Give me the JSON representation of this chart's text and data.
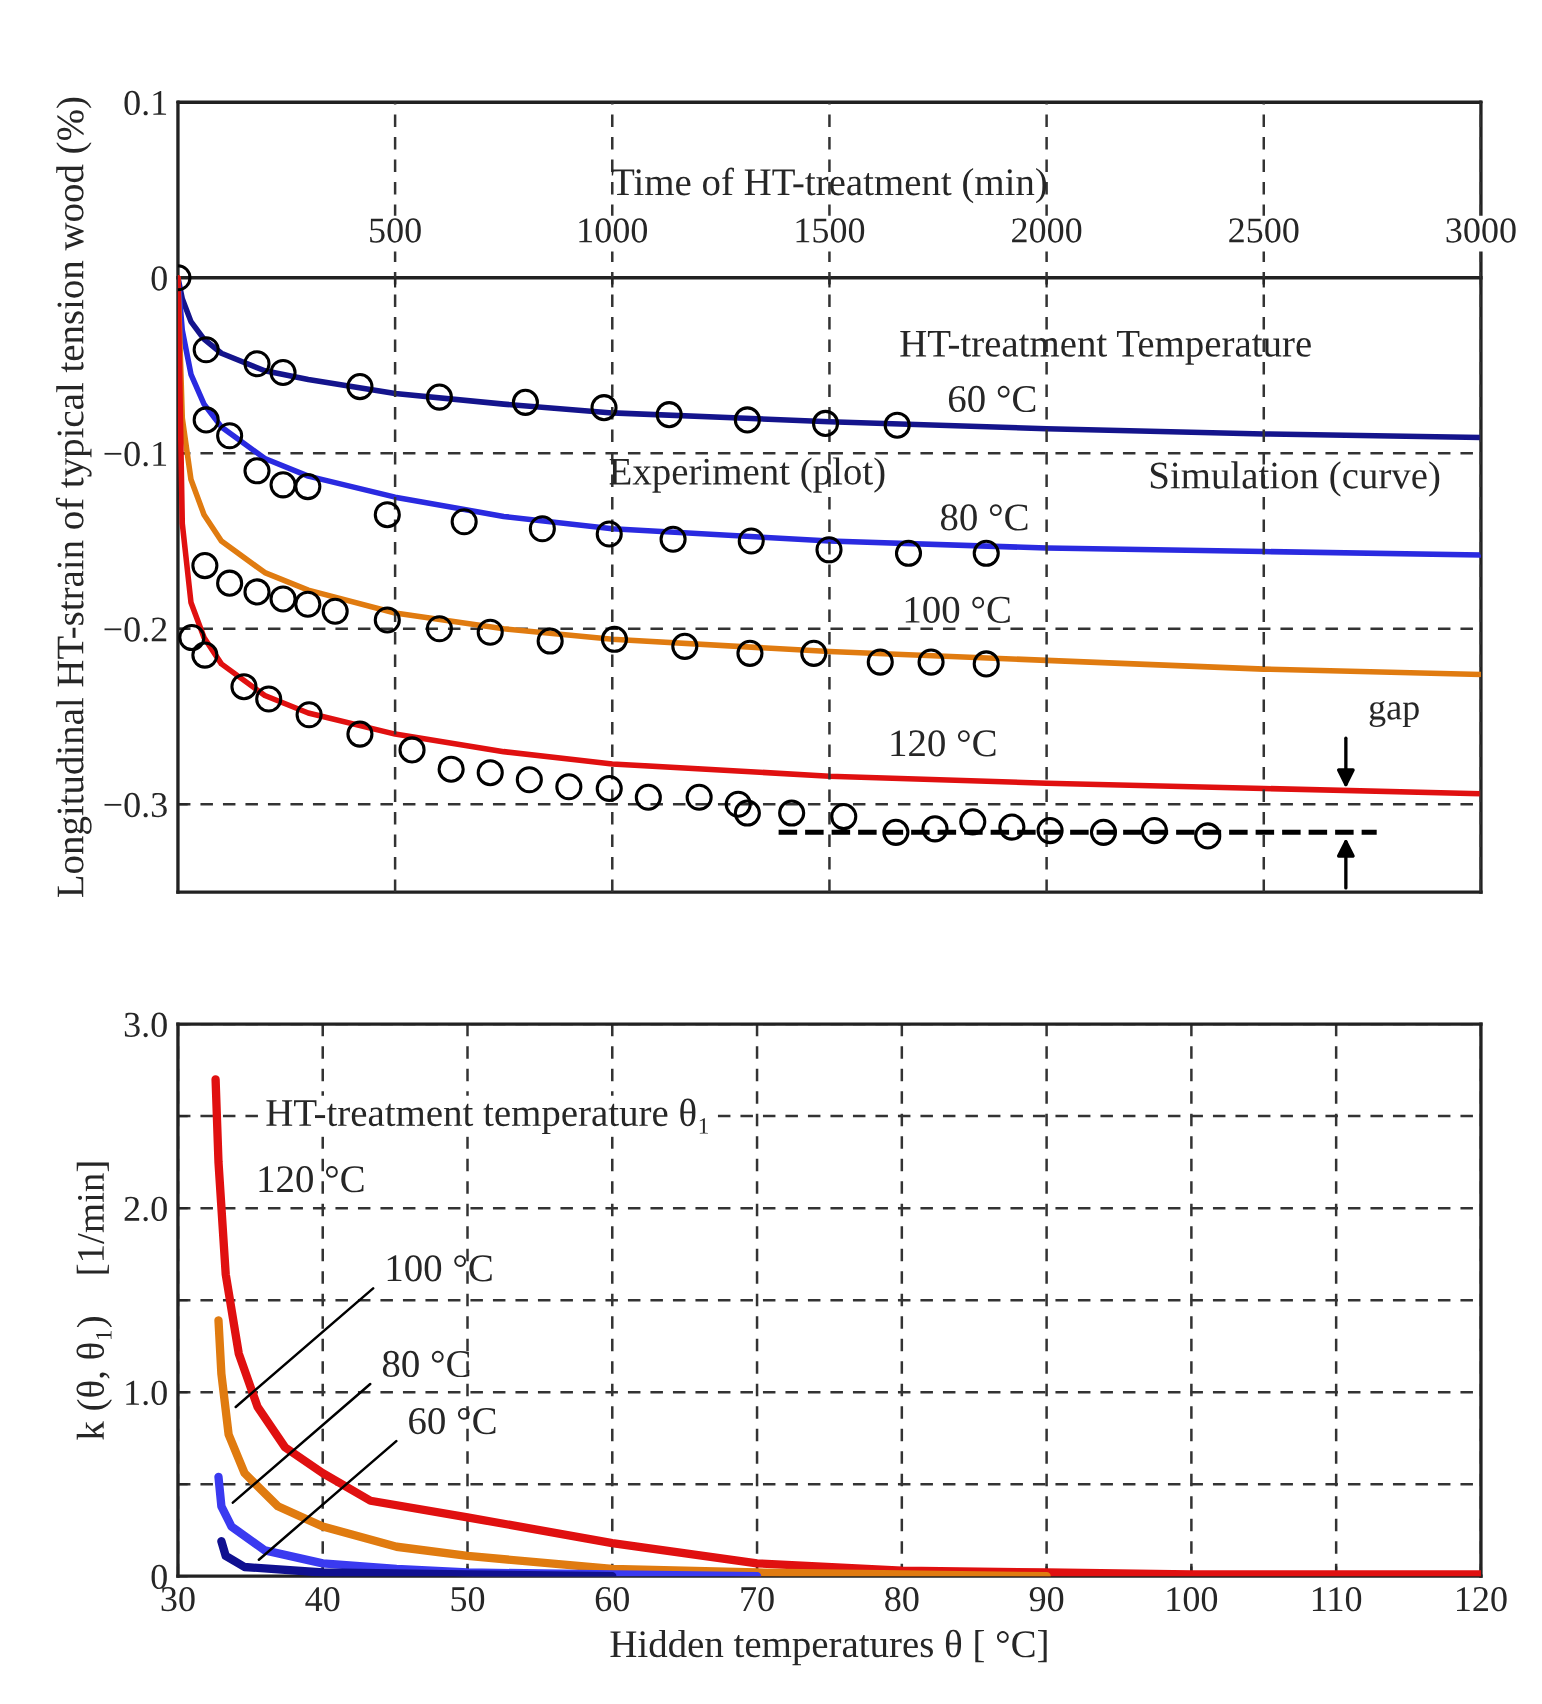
{
  "chart_data": [
    {
      "type": "line",
      "xlabel": "Time of HT-treatment (min)",
      "ylabel": "Longitudinal HT-strain of typical tension wood (%)",
      "x": [
        0,
        10,
        30,
        60,
        100,
        200,
        300,
        500,
        750,
        1000,
        1500,
        2000,
        2500,
        3000
      ],
      "xlim": [
        0,
        3000
      ],
      "xticks": [
        500,
        1000,
        1500,
        2000,
        2500,
        3000
      ],
      "ylim": [
        -0.35,
        0.1
      ],
      "yticks": [
        0.1,
        0,
        {
          "value": -0.1,
          "label": "−0.1"
        },
        {
          "value": -0.2,
          "label": "−0.2"
        },
        {
          "value": -0.3,
          "label": "−0.3"
        }
      ],
      "grid": true,
      "series": [
        {
          "color": "#14148c",
          "values": [
            0,
            -0.012,
            -0.025,
            -0.035,
            -0.043,
            -0.053,
            -0.058,
            -0.066,
            -0.072,
            -0.077,
            -0.082,
            -0.086,
            -0.089,
            -0.091
          ]
        },
        {
          "color": "#2a2ae0",
          "values": [
            0,
            -0.03,
            -0.055,
            -0.072,
            -0.085,
            -0.103,
            -0.113,
            -0.125,
            -0.136,
            -0.143,
            -0.15,
            -0.154,
            -0.156,
            -0.158
          ]
        },
        {
          "color": "#e07b10",
          "values": [
            0,
            -0.08,
            -0.115,
            -0.135,
            -0.15,
            -0.168,
            -0.178,
            -0.191,
            -0.2,
            -0.206,
            -0.213,
            -0.218,
            -0.223,
            -0.226
          ]
        },
        {
          "color": "#e01010",
          "values": [
            0,
            -0.14,
            -0.185,
            -0.205,
            -0.22,
            -0.238,
            -0.248,
            -0.26,
            -0.27,
            -0.277,
            -0.284,
            -0.288,
            -0.291,
            -0.294
          ]
        },
        {
          "type": "scatter",
          "marker": "circle",
          "color": "#000000",
          "x": [
            0,
            65,
            182,
            242,
            419,
            602,
            800,
            981,
            1131,
            1311,
            1491,
            1656
          ],
          "values": [
            0,
            -0.041,
            -0.049,
            -0.054,
            -0.062,
            -0.068,
            -0.071,
            -0.074,
            -0.078,
            -0.081,
            -0.083,
            -0.084
          ]
        },
        {
          "type": "scatter",
          "marker": "circle",
          "color": "#000000",
          "x": [
            65,
            119,
            182,
            242,
            299,
            482,
            659,
            839,
            993,
            1140,
            1320,
            1499,
            1682,
            1861
          ],
          "values": [
            -0.081,
            -0.09,
            -0.11,
            -0.118,
            -0.119,
            -0.135,
            -0.139,
            -0.143,
            -0.146,
            -0.149,
            -0.15,
            -0.155,
            -0.157,
            -0.157
          ]
        },
        {
          "type": "scatter",
          "marker": "circle",
          "color": "#000000",
          "x": [
            62,
            119,
            182,
            242,
            299,
            362,
            482,
            602,
            719,
            857,
            1005,
            1167,
            1317,
            1464,
            1617,
            1734,
            1861
          ],
          "values": [
            -0.164,
            -0.174,
            -0.179,
            -0.183,
            -0.186,
            -0.19,
            -0.195,
            -0.2,
            -0.202,
            -0.207,
            -0.206,
            -0.21,
            -0.214,
            -0.214,
            -0.219,
            -0.219,
            -0.22
          ]
        },
        {
          "type": "scatter",
          "marker": "circle",
          "color": "#000000",
          "x": [
            32,
            62,
            152,
            209,
            302,
            419,
            539,
            629,
            719,
            809,
            900,
            993,
            1083,
            1200,
            1290,
            1311,
            1413,
            1533,
            1653,
            1743,
            1830,
            1920,
            2008,
            2131,
            2248,
            2371
          ],
          "values": [
            -0.205,
            -0.215,
            -0.233,
            -0.24,
            -0.249,
            -0.26,
            -0.269,
            -0.28,
            -0.282,
            -0.286,
            -0.29,
            -0.291,
            -0.296,
            -0.296,
            -0.3,
            -0.305,
            -0.305,
            -0.307,
            -0.316,
            -0.314,
            -0.31,
            -0.313,
            -0.315,
            -0.316,
            -0.315,
            -0.318
          ]
        },
        {
          "line_style": "dashed",
          "color": "#000000",
          "x": [
            1383,
            2760
          ],
          "values": [
            -0.316,
            -0.316
          ]
        }
      ],
      "annotations": [
        "HT-treatment Temperature",
        "60 °C",
        "Experiment (plot)",
        "Simulation (curve)",
        "80 °C",
        "100 °C",
        "120 °C",
        {
          "text": "gap",
          "x": 2689,
          "y": -0.294
        }
      ]
    },
    {
      "type": "line",
      "xlabel": "Hidden temperatures θ [ °C]",
      "ylabel": "k (θ, θ₁)    [1/min]",
      "xlim": [
        30,
        120
      ],
      "xticks": [
        30,
        40,
        50,
        60,
        70,
        80,
        90,
        100,
        110,
        120
      ],
      "ylim": [
        0,
        3.0
      ],
      "yticks": [
        0,
        {
          "value": 0.5,
          "label": null
        },
        {
          "value": 1.0,
          "label": "1.0"
        },
        {
          "value": 1.5,
          "label": null
        },
        {
          "value": 2.0,
          "label": "2.0"
        },
        {
          "value": 2.5,
          "label": null
        },
        {
          "value": 3.0,
          "label": "3.0"
        }
      ],
      "grid": true,
      "series": [
        {
          "color": "#e01010",
          "x": [
            32.6,
            32.8,
            33.3,
            34.2,
            35.5,
            37.4,
            40,
            43.3,
            50,
            60,
            70,
            80,
            90,
            100,
            120
          ],
          "values": [
            2.7,
            2.25,
            1.64,
            1.21,
            0.92,
            0.7,
            0.56,
            0.41,
            0.32,
            0.18,
            0.07,
            0.03,
            0.02,
            0.01,
            0.01
          ]
        },
        {
          "color": "#e07b10",
          "x": [
            32.8,
            33.0,
            33.5,
            34.6,
            36.9,
            40,
            45.1,
            50,
            60,
            70,
            80,
            90
          ],
          "values": [
            1.39,
            1.1,
            0.77,
            0.56,
            0.38,
            0.27,
            0.16,
            0.11,
            0.04,
            0.02,
            0.01,
            0
          ]
        },
        {
          "color": "#3a3af0",
          "x": [
            32.8,
            33.0,
            33.7,
            36,
            40,
            45.1,
            50,
            60,
            70
          ],
          "values": [
            0.54,
            0.38,
            0.27,
            0.14,
            0.07,
            0.04,
            0.02,
            0.01,
            0
          ]
        },
        {
          "color": "#101090",
          "x": [
            33.0,
            33.3,
            34.6,
            40,
            50,
            60
          ],
          "values": [
            0.19,
            0.11,
            0.05,
            0.02,
            0.01,
            0
          ]
        }
      ],
      "annotations": [
        "HT-treatment temperature θ₁",
        "120 °C",
        {
          "text": "100 °C",
          "x": 33.7,
          "y": 0.9
        },
        {
          "text": "80 °C",
          "x": 33.5,
          "y": 0.38
        },
        {
          "text": "60 °C",
          "x": 35.3,
          "y": 0.07
        }
      ]
    }
  ]
}
